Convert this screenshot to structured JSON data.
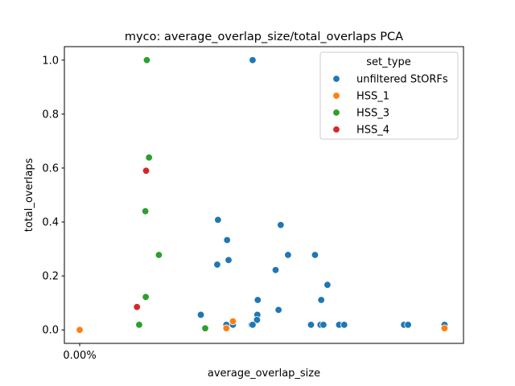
{
  "chart_data": {
    "type": "scatter",
    "title": "myco: average_overlap_size/total_overlaps PCA",
    "xlabel": "average_overlap_size",
    "ylabel": "total_overlaps",
    "xlim": [
      -0.042,
      1.052
    ],
    "ylim": [
      -0.05,
      1.05
    ],
    "x_ticks": [
      {
        "value": 0.0,
        "label": "0.00%"
      }
    ],
    "y_ticks": [
      {
        "value": 0.0,
        "label": "0.0"
      },
      {
        "value": 0.2,
        "label": "0.2"
      },
      {
        "value": 0.4,
        "label": "0.4"
      },
      {
        "value": 0.6,
        "label": "0.6"
      },
      {
        "value": 0.8,
        "label": "0.8"
      },
      {
        "value": 1.0,
        "label": "1.0"
      }
    ],
    "legend": {
      "title": "set_type",
      "placement": "upper-right"
    },
    "series": [
      {
        "name": "unfiltered StORFs",
        "color": "#1f77b4",
        "points": [
          {
            "x": 0.474,
            "y": 1.0
          },
          {
            "x": 0.379,
            "y": 0.408
          },
          {
            "x": 0.404,
            "y": 0.333
          },
          {
            "x": 0.408,
            "y": 0.259
          },
          {
            "x": 0.377,
            "y": 0.242
          },
          {
            "x": 0.551,
            "y": 0.389
          },
          {
            "x": 0.571,
            "y": 0.278
          },
          {
            "x": 0.537,
            "y": 0.222
          },
          {
            "x": 0.645,
            "y": 0.278
          },
          {
            "x": 0.679,
            "y": 0.167
          },
          {
            "x": 0.488,
            "y": 0.111
          },
          {
            "x": 0.662,
            "y": 0.111
          },
          {
            "x": 0.545,
            "y": 0.074
          },
          {
            "x": 0.487,
            "y": 0.056
          },
          {
            "x": 0.486,
            "y": 0.037
          },
          {
            "x": 0.332,
            "y": 0.056
          },
          {
            "x": 0.406,
            "y": 0.019
          },
          {
            "x": 0.402,
            "y": 0.019
          },
          {
            "x": 0.42,
            "y": 0.019
          },
          {
            "x": 0.471,
            "y": 0.019
          },
          {
            "x": 0.474,
            "y": 0.019
          },
          {
            "x": 0.634,
            "y": 0.019
          },
          {
            "x": 0.66,
            "y": 0.019
          },
          {
            "x": 0.668,
            "y": 0.019
          },
          {
            "x": 0.711,
            "y": 0.019
          },
          {
            "x": 0.725,
            "y": 0.019
          },
          {
            "x": 0.889,
            "y": 0.019
          },
          {
            "x": 0.9,
            "y": 0.019
          },
          {
            "x": 1.0,
            "y": 0.019
          }
        ]
      },
      {
        "name": "HSS_1",
        "color": "#ff7f0e",
        "points": [
          {
            "x": 0.0,
            "y": 0.0
          },
          {
            "x": 0.402,
            "y": 0.006
          },
          {
            "x": 0.42,
            "y": 0.032
          },
          {
            "x": 1.0,
            "y": 0.006
          }
        ]
      },
      {
        "name": "HSS_3",
        "color": "#2ca02c",
        "points": [
          {
            "x": 0.184,
            "y": 1.0
          },
          {
            "x": 0.19,
            "y": 0.639
          },
          {
            "x": 0.18,
            "y": 0.44
          },
          {
            "x": 0.217,
            "y": 0.278
          },
          {
            "x": 0.181,
            "y": 0.122
          },
          {
            "x": 0.163,
            "y": 0.019
          },
          {
            "x": 0.344,
            "y": 0.006
          }
        ]
      },
      {
        "name": "HSS_4",
        "color": "#d62728",
        "points": [
          {
            "x": 0.182,
            "y": 0.59
          },
          {
            "x": 0.157,
            "y": 0.085
          }
        ]
      }
    ]
  }
}
